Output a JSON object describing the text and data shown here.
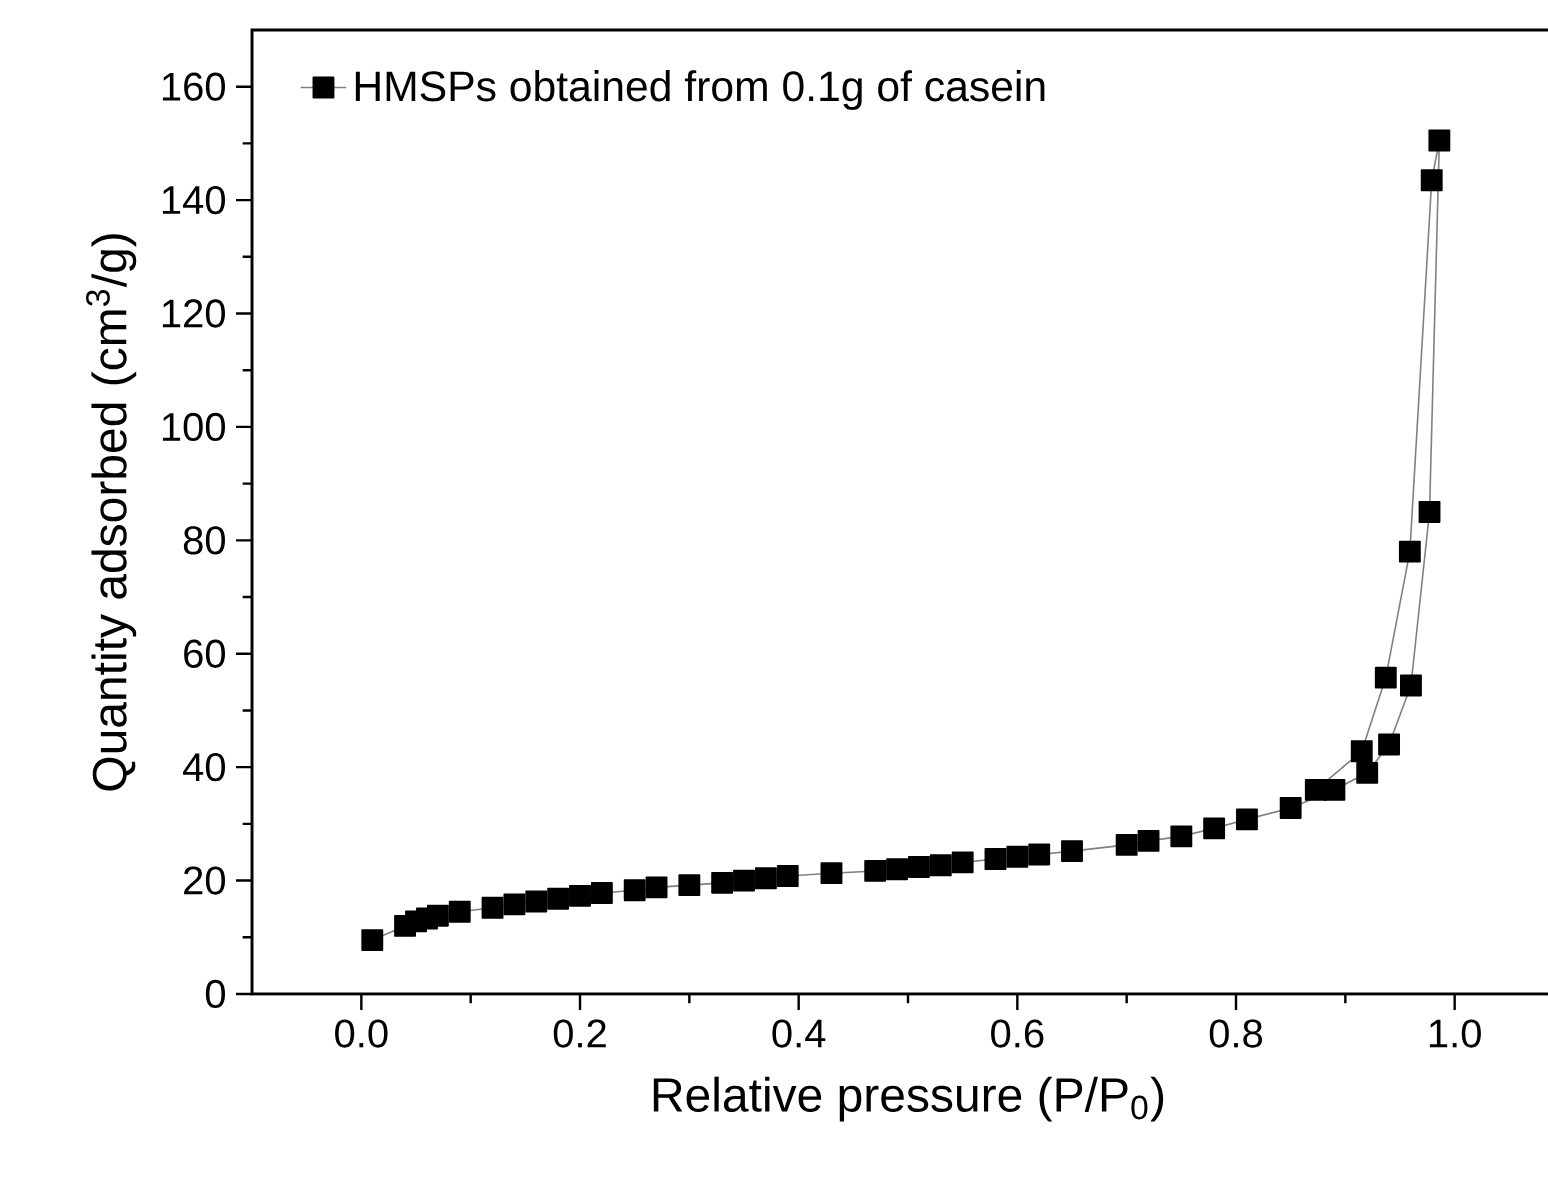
{
  "chart_data": {
    "type": "line",
    "xlabel": "Relative pressure (P/P$_{0}$)",
    "ylabel": "Quantity adsorbed (cm$^{3}$/g)",
    "xlim": [
      -0.1,
      1.1
    ],
    "ylim": [
      0,
      170
    ],
    "xticks": [
      {
        "value": 0,
        "label": "0.0"
      },
      {
        "value": 0.2,
        "label": "0.2"
      },
      {
        "value": 0.4,
        "label": "0.4"
      },
      {
        "value": 0.6,
        "label": "0.6"
      },
      {
        "value": 0.8,
        "label": "0.8"
      },
      {
        "value": 1,
        "label": "1.0"
      }
    ],
    "yticks": [
      0,
      20,
      40,
      60,
      80,
      100,
      120,
      140,
      160
    ],
    "legend": "top left",
    "marker": "square",
    "line_style": "solid",
    "grid": false,
    "series": [
      {
        "name": "HMSPs obtained from 0.1g of casein",
        "color": "#000000",
        "x": [
          0.01,
          0.04,
          0.05,
          0.06,
          0.07,
          0.09,
          0.12,
          0.14,
          0.16,
          0.18,
          0.2,
          0.22,
          0.25,
          0.27,
          0.3,
          0.33,
          0.35,
          0.37,
          0.39,
          0.43,
          0.47,
          0.49,
          0.51,
          0.53,
          0.55,
          0.58,
          0.6,
          0.62,
          0.65,
          0.7,
          0.72,
          0.75,
          0.78,
          0.81,
          0.85,
          0.89,
          0.92,
          0.94,
          0.96,
          0.977,
          0.986,
          0.979,
          0.959,
          0.937,
          0.915,
          0.873
        ],
        "values": [
          9.5,
          12,
          12.8,
          13.3,
          13.8,
          14.5,
          15.2,
          15.8,
          16.3,
          16.8,
          17.3,
          17.8,
          18.3,
          18.8,
          19.2,
          19.6,
          20,
          20.4,
          20.8,
          21.3,
          21.7,
          22,
          22.4,
          22.7,
          23.2,
          23.8,
          24.2,
          24.6,
          25.2,
          26.3,
          27,
          27.8,
          29.2,
          30.8,
          32.8,
          36,
          39,
          44,
          54.4,
          85,
          150.5,
          143.5,
          78,
          55.8,
          42.8,
          36
        ]
      }
    ]
  }
}
